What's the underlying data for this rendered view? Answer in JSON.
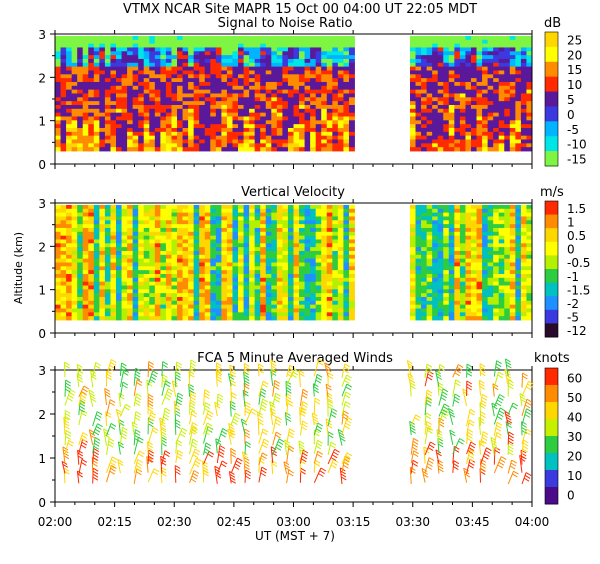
{
  "header": {
    "title": "VTMX   NCAR Site   MAPR 15 Oct 00   04:00 UT   22:05   MDT"
  },
  "chart_data": [
    {
      "type": "heatmap",
      "title": "Signal to Noise Ratio",
      "unit": "dB",
      "ylabel": "",
      "ylim": [
        0,
        3
      ],
      "yticks": [
        "0",
        "1",
        "2",
        "3"
      ],
      "colorbar_labels": [
        "25",
        "20",
        "15",
        "10",
        "5",
        "0",
        "-5",
        "-10",
        "-15"
      ],
      "colorbar_colors": [
        "#ffd700",
        "#ffff00",
        "#ff8c00",
        "#ff2a00",
        "#5a189a",
        "#3a3adf",
        "#00b4ff",
        "#00e5e5",
        "#7ef542"
      ],
      "data_gaps": [
        [
          "03:15",
          "03:30"
        ]
      ]
    },
    {
      "type": "heatmap",
      "title": "Vertical Velocity",
      "unit": "m/s",
      "ylabel": "Altitude (km)",
      "ylim": [
        0,
        3
      ],
      "yticks": [
        "0",
        "1",
        "2",
        "3"
      ],
      "colorbar_labels": [
        "1.5",
        "1",
        "0.5",
        "0",
        "-0.5",
        "-1",
        "-1.5",
        "-2",
        "-5",
        "-12"
      ],
      "colorbar_colors": [
        "#ff2a00",
        "#ff8c00",
        "#ffd700",
        "#ffff00",
        "#b5f000",
        "#2ecc40",
        "#00c0c0",
        "#1e90ff",
        "#3a3adf",
        "#2a0a2a"
      ],
      "data_gaps": [
        [
          "03:15",
          "03:30"
        ]
      ]
    },
    {
      "type": "scatter",
      "title": "FCA 5 Minute Averaged Winds",
      "unit": "knots",
      "ylabel": "",
      "ylim": [
        0,
        3
      ],
      "yticks": [
        "0",
        "1",
        "2",
        "3"
      ],
      "colorbar_labels": [
        "60",
        "50",
        "40",
        "30",
        "20",
        "10",
        "0"
      ],
      "colorbar_colors": [
        "#ff2a00",
        "#ff8c00",
        "#ffd700",
        "#c6f000",
        "#2ecc40",
        "#00c0c0",
        "#3a3adf",
        "#4b0a8a"
      ],
      "data_gaps": [
        [
          "03:15",
          "03:30"
        ]
      ]
    }
  ],
  "x_axis": {
    "label": "UT  (MST + 7)",
    "ticks": [
      "02:00",
      "02:15",
      "02:30",
      "02:45",
      "03:00",
      "03:15",
      "03:30",
      "03:45",
      "04:00"
    ]
  }
}
